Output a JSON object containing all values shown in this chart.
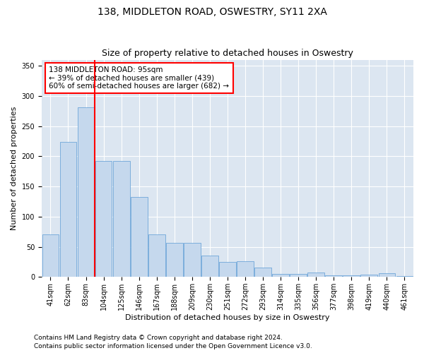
{
  "title": "138, MIDDLETON ROAD, OSWESTRY, SY11 2XA",
  "subtitle": "Size of property relative to detached houses in Oswestry",
  "xlabel": "Distribution of detached houses by size in Oswestry",
  "ylabel": "Number of detached properties",
  "categories": [
    "41sqm",
    "62sqm",
    "83sqm",
    "104sqm",
    "125sqm",
    "146sqm",
    "167sqm",
    "188sqm",
    "209sqm",
    "230sqm",
    "251sqm",
    "272sqm",
    "293sqm",
    "314sqm",
    "335sqm",
    "356sqm",
    "377sqm",
    "398sqm",
    "419sqm",
    "440sqm",
    "461sqm"
  ],
  "values": [
    70,
    224,
    281,
    192,
    192,
    133,
    70,
    57,
    57,
    35,
    25,
    26,
    16,
    5,
    5,
    7,
    3,
    3,
    4,
    6,
    2
  ],
  "bar_color": "#c5d8ed",
  "bar_edge_color": "#5b9bd5",
  "bg_color": "#dce6f1",
  "grid_color": "#ffffff",
  "vline_color": "red",
  "annotation_text": "138 MIDDLETON ROAD: 95sqm\n← 39% of detached houses are smaller (439)\n60% of semi-detached houses are larger (682) →",
  "annotation_box_color": "white",
  "annotation_edge_color": "red",
  "ylim": [
    0,
    360
  ],
  "yticks": [
    0,
    50,
    100,
    150,
    200,
    250,
    300,
    350
  ],
  "footer_line1": "Contains HM Land Registry data © Crown copyright and database right 2024.",
  "footer_line2": "Contains public sector information licensed under the Open Government Licence v3.0.",
  "title_fontsize": 10,
  "subtitle_fontsize": 9,
  "axis_label_fontsize": 8,
  "tick_fontsize": 7,
  "annotation_fontsize": 7.5,
  "footer_fontsize": 6.5
}
